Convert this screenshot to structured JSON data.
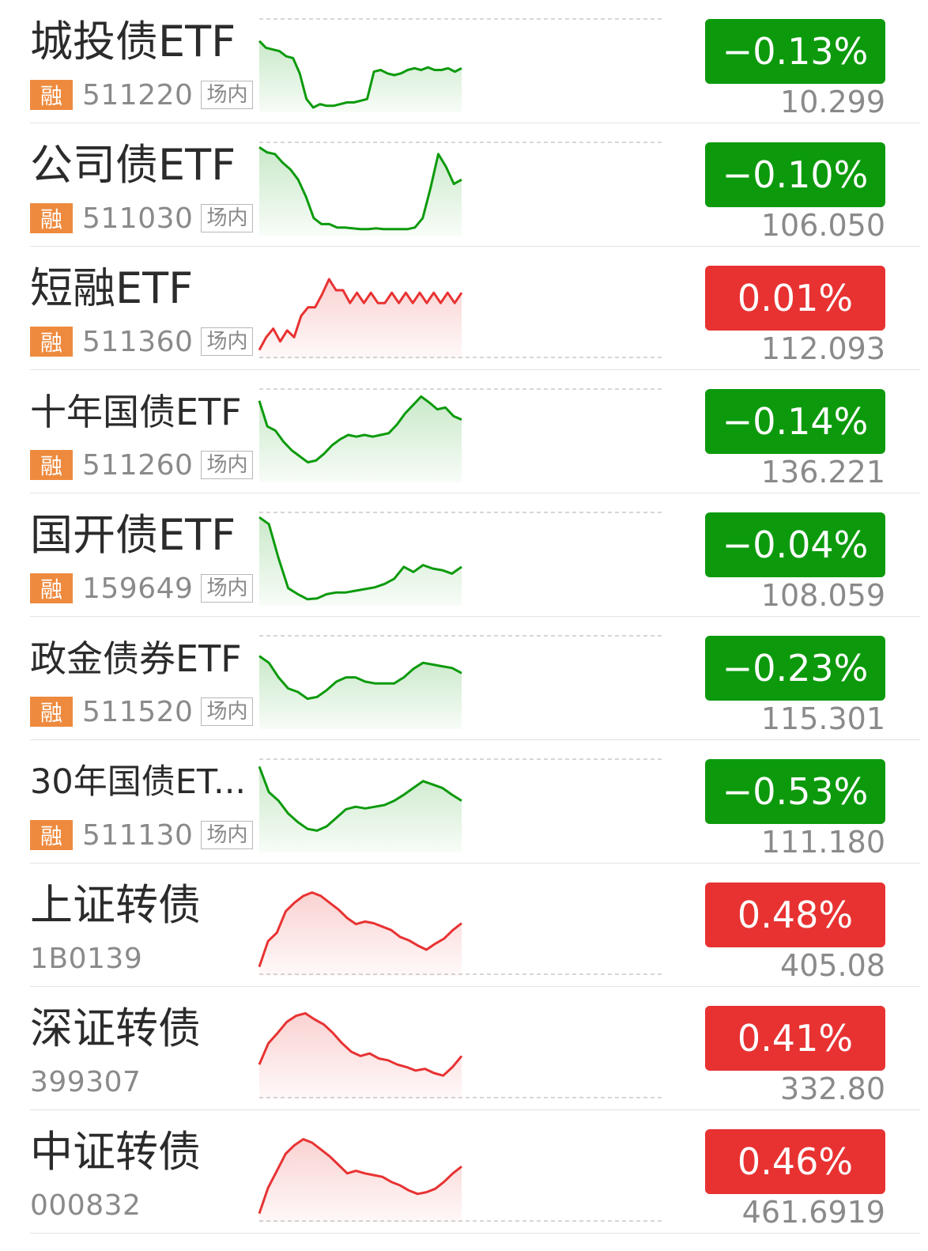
{
  "colors": {
    "down": "#0c9a0c",
    "up": "#e83232",
    "badge": "#ee8a3e",
    "tag_border": "#b8b8b8"
  },
  "rows": [
    {
      "name": "城投债ETF",
      "rong": "融",
      "code": "511220",
      "market": "场内",
      "change": "−0.13%",
      "price": "10.299",
      "trend": "down",
      "spark": [
        0.78,
        0.7,
        0.68,
        0.66,
        0.6,
        0.58,
        0.4,
        0.1,
        0.0,
        0.04,
        0.02,
        0.02,
        0.04,
        0.06,
        0.06,
        0.08,
        0.1,
        0.42,
        0.44,
        0.4,
        0.38,
        0.4,
        0.44,
        0.46,
        0.44,
        0.47,
        0.44,
        0.44,
        0.46,
        0.42,
        0.46
      ]
    },
    {
      "name": "公司债ETF",
      "rong": "融",
      "code": "511030",
      "market": "场内",
      "change": "−0.10%",
      "price": "106.050",
      "trend": "down",
      "spark": [
        0.98,
        0.92,
        0.9,
        0.8,
        0.72,
        0.6,
        0.4,
        0.15,
        0.08,
        0.08,
        0.04,
        0.04,
        0.03,
        0.02,
        0.02,
        0.03,
        0.02,
        0.02,
        0.02,
        0.02,
        0.04,
        0.15,
        0.5,
        0.9,
        0.75,
        0.55,
        0.6
      ]
    },
    {
      "name": "短融ETF",
      "rong": "融",
      "code": "511360",
      "market": "场内",
      "change": "0.01%",
      "price": "112.093",
      "trend": "up",
      "spark": [
        0.05,
        0.2,
        0.3,
        0.15,
        0.28,
        0.2,
        0.45,
        0.55,
        0.55,
        0.7,
        0.88,
        0.75,
        0.75,
        0.6,
        0.72,
        0.6,
        0.72,
        0.6,
        0.6,
        0.72,
        0.6,
        0.72,
        0.6,
        0.72,
        0.6,
        0.72,
        0.6,
        0.72,
        0.6,
        0.72
      ]
    },
    {
      "name": "十年国债ETF",
      "rong": "融",
      "code": "511260",
      "market": "场内",
      "change": "−0.14%",
      "price": "136.221",
      "trend": "down",
      "spark": [
        0.9,
        0.6,
        0.55,
        0.42,
        0.32,
        0.25,
        0.18,
        0.2,
        0.28,
        0.38,
        0.45,
        0.5,
        0.48,
        0.5,
        0.48,
        0.5,
        0.52,
        0.62,
        0.75,
        0.85,
        0.95,
        0.88,
        0.8,
        0.82,
        0.72,
        0.68
      ]
    },
    {
      "name": "国开债ETF",
      "rong": "融",
      "code": "159649",
      "market": "场内",
      "change": "−0.04%",
      "price": "108.059",
      "trend": "down",
      "spark": [
        0.98,
        0.9,
        0.5,
        0.15,
        0.08,
        0.02,
        0.03,
        0.08,
        0.1,
        0.1,
        0.12,
        0.14,
        0.16,
        0.2,
        0.26,
        0.4,
        0.34,
        0.42,
        0.38,
        0.36,
        0.32,
        0.4
      ]
    },
    {
      "name": "政金债券ETF",
      "rong": "融",
      "code": "511520",
      "market": "场内",
      "change": "−0.23%",
      "price": "115.301",
      "trend": "down",
      "spark": [
        0.8,
        0.72,
        0.55,
        0.42,
        0.38,
        0.3,
        0.32,
        0.4,
        0.5,
        0.55,
        0.55,
        0.5,
        0.48,
        0.48,
        0.48,
        0.55,
        0.65,
        0.72,
        0.7,
        0.68,
        0.66,
        0.6
      ]
    },
    {
      "name": "30年国债ET...",
      "rong": "融",
      "code": "511130",
      "market": "场内",
      "change": "−0.53%",
      "price": "111.180",
      "trend": "down",
      "spark": [
        0.95,
        0.65,
        0.55,
        0.4,
        0.3,
        0.22,
        0.2,
        0.25,
        0.35,
        0.45,
        0.48,
        0.46,
        0.48,
        0.5,
        0.55,
        0.62,
        0.7,
        0.78,
        0.74,
        0.7,
        0.62,
        0.55
      ]
    },
    {
      "name": "上证转债",
      "code": "1B0139",
      "change": "0.48%",
      "price": "405.08",
      "trend": "up",
      "spark": [
        0.05,
        0.35,
        0.45,
        0.7,
        0.8,
        0.88,
        0.92,
        0.88,
        0.8,
        0.72,
        0.62,
        0.55,
        0.58,
        0.56,
        0.52,
        0.48,
        0.4,
        0.36,
        0.3,
        0.25,
        0.32,
        0.38,
        0.48,
        0.56
      ]
    },
    {
      "name": "深证转债",
      "code": "399307",
      "change": "0.41%",
      "price": "332.80",
      "trend": "up",
      "spark": [
        0.35,
        0.6,
        0.72,
        0.85,
        0.92,
        0.95,
        0.88,
        0.82,
        0.72,
        0.6,
        0.5,
        0.45,
        0.48,
        0.42,
        0.4,
        0.35,
        0.32,
        0.28,
        0.3,
        0.25,
        0.22,
        0.32,
        0.45
      ]
    },
    {
      "name": "中证转债",
      "code": "000832",
      "change": "0.46%",
      "price": "461.6919",
      "trend": "up",
      "spark": [
        0.05,
        0.35,
        0.55,
        0.75,
        0.85,
        0.92,
        0.88,
        0.8,
        0.72,
        0.62,
        0.52,
        0.55,
        0.52,
        0.5,
        0.48,
        0.42,
        0.38,
        0.32,
        0.28,
        0.3,
        0.34,
        0.42,
        0.52,
        0.6
      ]
    }
  ]
}
